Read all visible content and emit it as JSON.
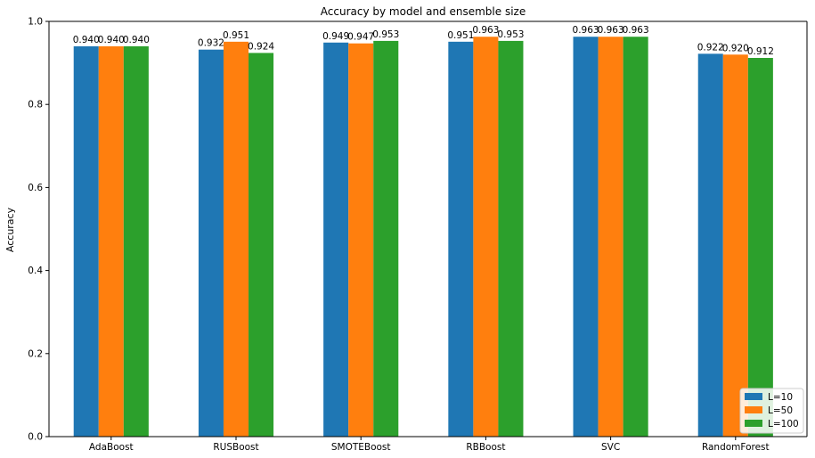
{
  "chart_data": {
    "type": "bar",
    "title": "Accuracy by model and ensemble size",
    "xlabel": "",
    "ylabel": "Accuracy",
    "ylim": [
      0,
      1.0
    ],
    "yticks": [
      0.0,
      0.2,
      0.4,
      0.6,
      0.8,
      1.0
    ],
    "ytick_labels": [
      "0.0",
      "0.2",
      "0.4",
      "0.6",
      "0.8",
      "1.0"
    ],
    "categories": [
      "AdaBoost",
      "RUSBoost",
      "SMOTEBoost",
      "RBBoost",
      "SVC",
      "RandomForest"
    ],
    "series": [
      {
        "name": "L=10",
        "color": "#1f77b4",
        "values": [
          0.94,
          0.932,
          0.949,
          0.951,
          0.963,
          0.922
        ],
        "labels": [
          "0.940",
          "0.932",
          "0.949",
          "0.951",
          "0.963",
          "0.922"
        ]
      },
      {
        "name": "L=50",
        "color": "#ff7f0e",
        "values": [
          0.94,
          0.951,
          0.947,
          0.963,
          0.963,
          0.92
        ],
        "labels": [
          "0.940",
          "0.951",
          "0.947",
          "0.963",
          "0.963",
          "0.920"
        ]
      },
      {
        "name": "L=100",
        "color": "#2ca02c",
        "values": [
          0.94,
          0.924,
          0.953,
          0.953,
          0.963,
          0.912
        ],
        "labels": [
          "0.940",
          "0.924",
          "0.953",
          "0.953",
          "0.963",
          "0.912"
        ]
      }
    ],
    "grid": false,
    "legend_position": "lower-right"
  }
}
